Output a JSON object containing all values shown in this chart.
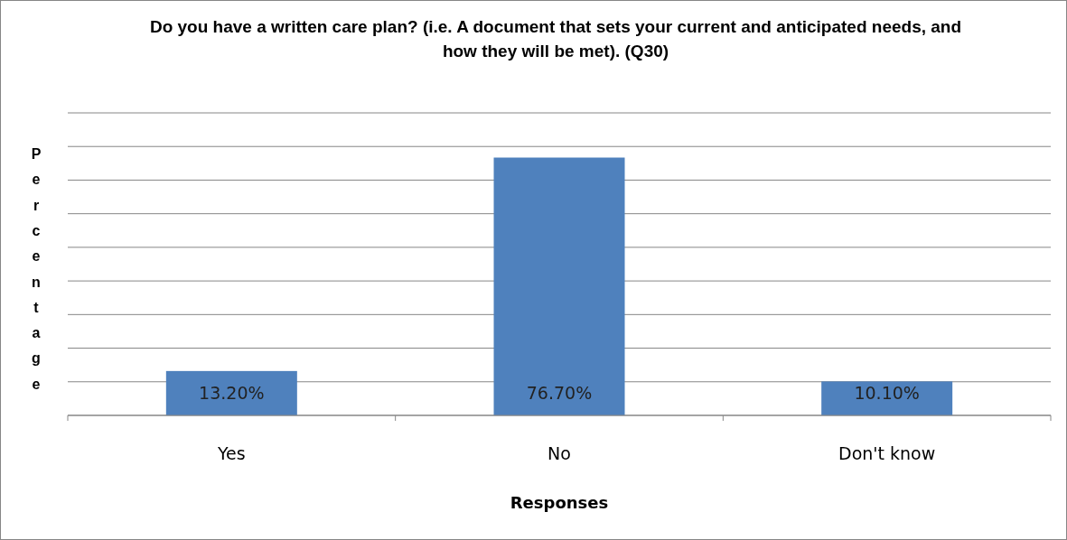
{
  "chart_data": {
    "type": "bar",
    "title": "Do you have a written care plan? (i.e. A document that sets your current and anticipated needs, and how they will be met). (Q30)",
    "xlabel": "Responses",
    "ylabel": "Percentage",
    "categories": [
      "Yes",
      "No",
      "Don't know"
    ],
    "values": [
      13.2,
      76.7,
      10.1
    ],
    "value_labels": [
      "13.20%",
      "76.70%",
      "10.10%"
    ],
    "color": "#4f81bd",
    "ylim": [
      0,
      90
    ],
    "yticks": [
      {
        "value": 0,
        "label": null
      },
      {
        "value": 10,
        "label": null
      },
      {
        "value": 20,
        "label": null
      },
      {
        "value": 30,
        "label": null
      },
      {
        "value": 40,
        "label": null
      },
      {
        "value": 50,
        "label": null
      },
      {
        "value": 60,
        "label": null
      },
      {
        "value": 70,
        "label": null
      },
      {
        "value": 80,
        "label": null
      },
      {
        "value": 90,
        "label": null
      }
    ],
    "grid": "y",
    "tick_labels": "x"
  }
}
